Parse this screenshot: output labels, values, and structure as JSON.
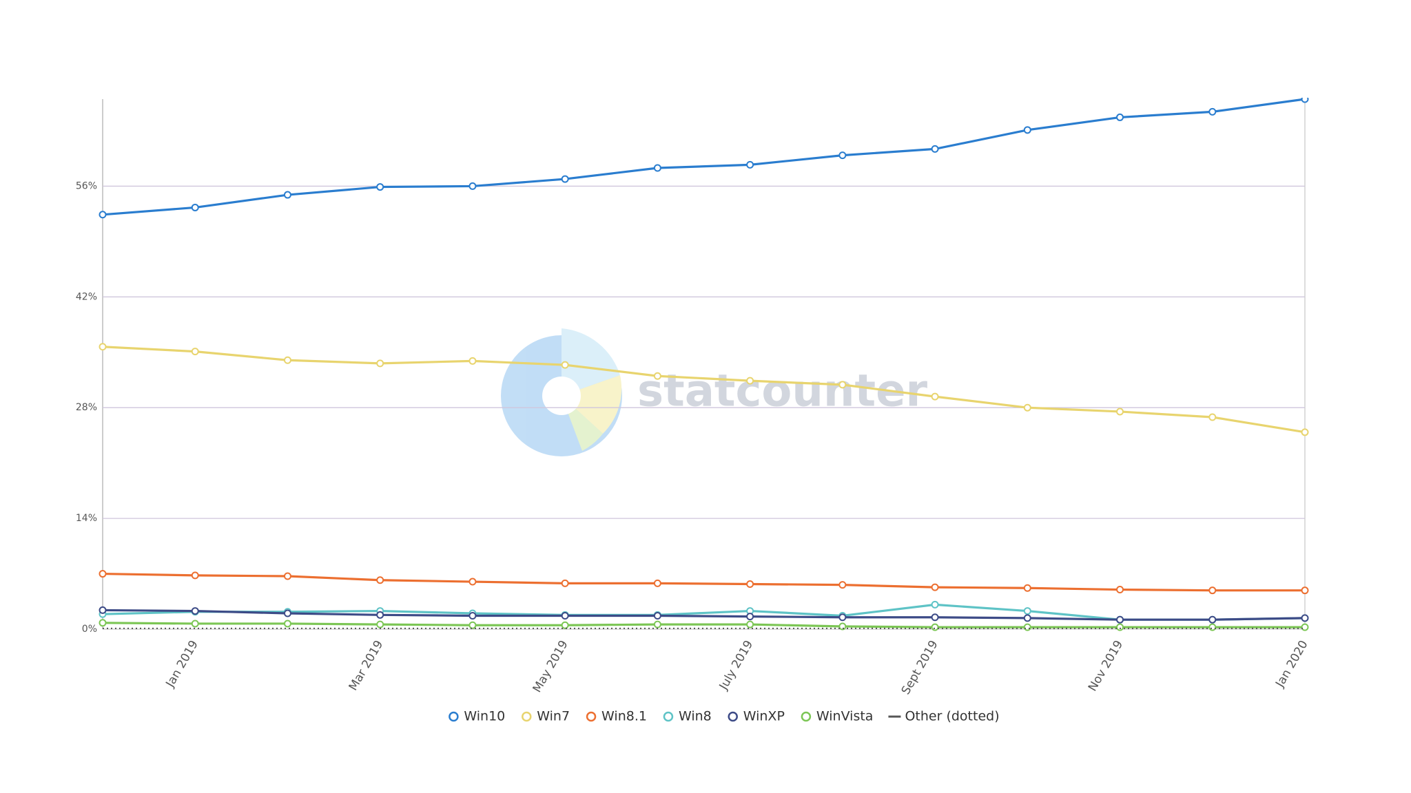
{
  "chart_data": {
    "type": "line",
    "watermark": "statcounter",
    "categories": [
      null,
      "Jan 2019",
      null,
      "Mar 2019",
      null,
      "May 2019",
      null,
      "July 2019",
      null,
      "Sept 2019",
      null,
      "Nov 2019",
      null,
      "Jan 2020"
    ],
    "series": [
      {
        "name": "Win10",
        "color": "#2a7dcf",
        "values": [
          52.4,
          53.3,
          54.9,
          55.9,
          56.0,
          56.9,
          58.3,
          58.7,
          59.9,
          60.7,
          63.1,
          64.7,
          65.4,
          67
        ]
      },
      {
        "name": "Win7",
        "color": "#e8d46e",
        "values": [
          35.7,
          35.1,
          34.0,
          33.6,
          33.9,
          33.4,
          32.0,
          31.4,
          30.9,
          29.4,
          28.0,
          27.5,
          26.8,
          24.9
        ]
      },
      {
        "name": "Win8.1",
        "color": "#ec6f30",
        "values": [
          7.0,
          6.8,
          6.7,
          6.2,
          6.0,
          5.8,
          5.8,
          5.7,
          5.6,
          5.3,
          5.2,
          5.0,
          4.9,
          4.9
        ]
      },
      {
        "name": "Win8",
        "color": "#5ec3c6",
        "values": [
          1.9,
          2.2,
          2.2,
          2.3,
          2.0,
          1.8,
          1.8,
          2.3,
          1.7,
          3.1,
          2.3,
          1.2,
          1.2,
          1.4
        ]
      },
      {
        "name": "WinXP",
        "color": "#3d4b87",
        "values": [
          2.4,
          2.3,
          2.0,
          1.8,
          1.7,
          1.7,
          1.7,
          1.6,
          1.5,
          1.5,
          1.4,
          1.2,
          1.2,
          1.4
        ]
      },
      {
        "name": "WinVista",
        "color": "#7cc655",
        "values": [
          0.8,
          0.7,
          0.7,
          0.6,
          0.5,
          0.5,
          0.6,
          0.6,
          0.35,
          0.25,
          0.25,
          0.25,
          0.25,
          0.25
        ]
      },
      {
        "name": "Other (dotted)",
        "color": "#555555",
        "dotted": true,
        "values": [
          0.1,
          0.1,
          0.1,
          0.1,
          0.1,
          0.1,
          0.1,
          0.1,
          0.1,
          0.1,
          0.1,
          0.1,
          0.1,
          0.1
        ]
      }
    ],
    "ylim": [
      0,
      67
    ],
    "yticks": [
      {
        "value": 0,
        "label": "0%"
      },
      {
        "value": 14,
        "label": "14%"
      },
      {
        "value": 28,
        "label": "28%"
      },
      {
        "value": 42,
        "label": "42%"
      },
      {
        "value": 56,
        "label": "56%"
      }
    ],
    "grid": true
  }
}
